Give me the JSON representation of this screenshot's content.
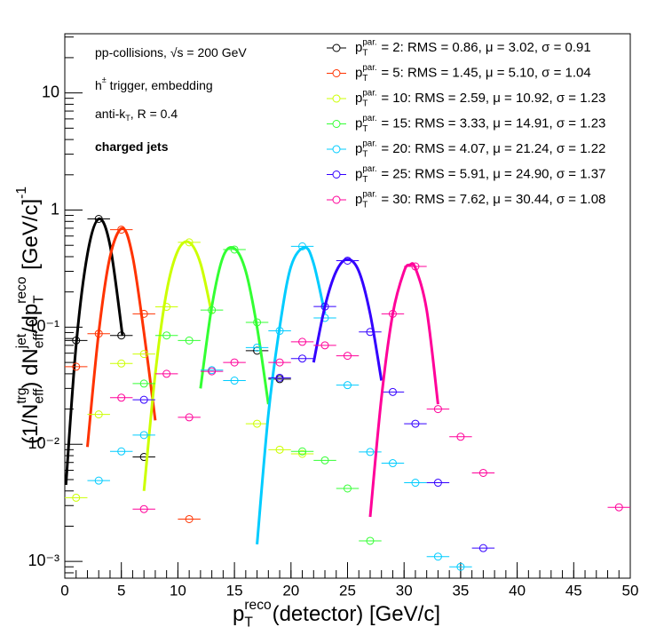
{
  "chart_data": {
    "type": "scatter",
    "log_y": true,
    "xlim": [
      0,
      50
    ],
    "ylim": [
      0.00072,
      32
    ],
    "xticks": [
      0,
      5,
      10,
      15,
      20,
      25,
      30,
      35,
      40,
      45,
      50
    ],
    "yticks": [
      {
        "value": 0.001,
        "label": "10⁻³"
      },
      {
        "value": 0.01,
        "label": "10⁻²"
      },
      {
        "value": 0.1,
        "label": "10⁻¹"
      },
      1,
      10
    ],
    "xerr": 1,
    "xlabel": [
      {
        "t": "p"
      },
      {
        "sup": "reco",
        "sub": "T"
      },
      {
        "t": "(detector) [GeV/c]"
      }
    ],
    "ylabel": [
      {
        "t": "(1/N"
      },
      {
        "sup": "trg",
        "sub": "eff"
      },
      {
        "t": ") dN"
      },
      {
        "sup": "jet",
        "sub": "eff"
      },
      {
        "t": "/dp"
      },
      {
        "sup": "reco",
        "sub": "T"
      },
      {
        "t": " [GeV/c]"
      },
      {
        "sup": "-1"
      }
    ],
    "annotations": [
      [
        {
          "t": "pp-collisions, √s = 200 GeV"
        }
      ],
      [
        {
          "t": "h"
        },
        {
          "sup": "±"
        },
        {
          "t": " trigger, embedding"
        }
      ],
      [
        {
          "t": "anti-k"
        },
        {
          "sub": "T"
        },
        {
          "t": ", R = 0.4"
        }
      ],
      [
        {
          "t": "charged jets",
          "bold": true
        }
      ]
    ],
    "legend_prefix": [
      {
        "t": "p"
      },
      {
        "sup": "par.",
        "sub": "T"
      }
    ],
    "series": [
      {
        "name": " = 2: RMS = 0.86, μ = 3.02, σ = 0.91",
        "color": "#000000",
        "x": [
          1,
          3,
          5,
          7,
          17,
          19
        ],
        "values": [
          0.077,
          0.84,
          0.085,
          0.0078,
          0.063,
          0.036
        ],
        "fit": {
          "x": [
            0.1,
            1,
            2,
            3,
            4,
            5.1
          ],
          "values": [
            0.0045,
            0.07,
            0.42,
            0.84,
            0.5,
            0.085
          ]
        }
      },
      {
        "name": " = 5: RMS = 1.45, μ = 5.10, σ = 1.04",
        "color": "#ff3300",
        "x": [
          1,
          3,
          5,
          7,
          11
        ],
        "values": [
          0.046,
          0.088,
          0.68,
          0.13,
          0.0023
        ],
        "fit": {
          "x": [
            2,
            3,
            4,
            5.1,
            6,
            7,
            8
          ],
          "values": [
            0.0095,
            0.09,
            0.4,
            0.7,
            0.4,
            0.09,
            0.016
          ]
        }
      },
      {
        "name": " = 10: RMS = 2.59, μ = 10.92, σ = 1.23",
        "color": "#ccff00",
        "x": [
          1,
          3,
          5,
          7,
          9,
          11,
          17,
          19,
          21
        ],
        "values": [
          0.0035,
          0.018,
          0.049,
          0.059,
          0.149,
          0.53,
          0.015,
          0.009,
          0.0083
        ],
        "fit": {
          "x": [
            7,
            8,
            9,
            10,
            11,
            12,
            13
          ],
          "values": [
            0.004,
            0.04,
            0.2,
            0.45,
            0.53,
            0.35,
            0.13
          ]
        }
      },
      {
        "name": " = 15: RMS = 3.33, μ = 14.91, σ = 1.23",
        "color": "#33ff33",
        "x": [
          7,
          9,
          11,
          13,
          15,
          17,
          21,
          23,
          25,
          27
        ],
        "values": [
          0.033,
          0.085,
          0.077,
          0.14,
          0.46,
          0.11,
          0.0087,
          0.0073,
          0.0042,
          0.0015
        ],
        "fit": {
          "x": [
            12,
            13,
            14,
            15,
            16,
            17,
            18
          ],
          "values": [
            0.03,
            0.15,
            0.4,
            0.47,
            0.3,
            0.1,
            0.022
          ]
        }
      },
      {
        "name": " = 20: RMS = 4.07, μ = 21.24, σ = 1.22",
        "color": "#00ccff",
        "x": [
          3,
          5,
          7,
          13,
          15,
          17,
          19,
          21,
          23,
          25,
          27,
          29,
          31,
          33,
          35
        ],
        "values": [
          0.0049,
          0.0087,
          0.012,
          0.043,
          0.035,
          0.067,
          0.093,
          0.49,
          0.12,
          0.032,
          0.0086,
          0.0069,
          0.0047,
          0.0011,
          0.0009
        ],
        "fit": {
          "x": [
            17,
            18,
            19,
            20,
            21.2,
            22,
            23
          ],
          "values": [
            0.0014,
            0.018,
            0.1,
            0.33,
            0.48,
            0.35,
            0.13
          ]
        }
      },
      {
        "name": " = 25: RMS = 5.91, μ = 24.90, σ = 1.37",
        "color": "#3300ff",
        "x": [
          7,
          19,
          21,
          23,
          25,
          27,
          29,
          31,
          33,
          37
        ],
        "values": [
          0.024,
          0.037,
          0.054,
          0.15,
          0.37,
          0.091,
          0.028,
          0.015,
          0.0047,
          0.0013
        ],
        "fit": {
          "x": [
            22,
            23,
            24,
            25,
            26,
            27,
            28
          ],
          "values": [
            0.05,
            0.15,
            0.3,
            0.38,
            0.3,
            0.13,
            0.035
          ]
        }
      },
      {
        "name": " = 30: RMS = 7.62, μ = 30.44, σ = 1.08",
        "color": "#ff0099",
        "x": [
          5,
          7,
          9,
          11,
          13,
          15,
          19,
          21,
          23,
          25,
          29,
          31,
          33,
          35,
          37,
          49
        ],
        "values": [
          0.025,
          0.0028,
          0.04,
          0.017,
          0.042,
          0.05,
          0.05,
          0.075,
          0.07,
          0.057,
          0.13,
          0.33,
          0.02,
          0.0116,
          0.0057,
          0.0029
        ],
        "fit": {
          "x": [
            27,
            28,
            29,
            30,
            30.5,
            31,
            32,
            33
          ],
          "values": [
            0.0024,
            0.025,
            0.13,
            0.3,
            0.34,
            0.32,
            0.14,
            0.022
          ]
        }
      }
    ]
  }
}
